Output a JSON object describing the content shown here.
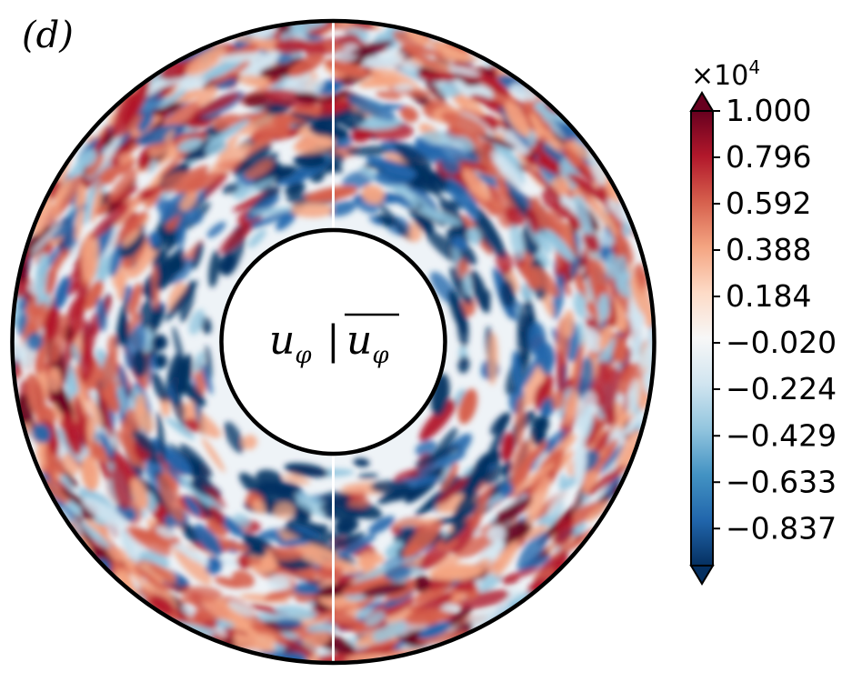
{
  "chart_data": {
    "type": "heatmap",
    "panel_label": "(d)",
    "center_label": {
      "left_symbol": "u",
      "left_subscript": "φ",
      "separator": "|",
      "right_symbol": "u",
      "right_subscript": "φ",
      "right_overline": true
    },
    "geometry": "annulus (meridional/equatorial slice); left half: instantaneous field, right half: time-averaged field",
    "colormap": "RdBu_r",
    "colorbar": {
      "multiplier": "×10",
      "multiplier_exponent": "4",
      "extend": "both",
      "range": [
        -1.0,
        1.0
      ],
      "ticks": [
        "1.000",
        "0.796",
        "0.592",
        "0.388",
        "0.184",
        "−0.020",
        "−0.224",
        "−0.429",
        "−0.633",
        "−0.837"
      ],
      "tick_values": [
        1.0,
        0.796,
        0.592,
        0.388,
        0.184,
        -0.02,
        -0.224,
        -0.429,
        -0.633,
        -0.837
      ]
    },
    "colors": {
      "neg_extreme": "#053061",
      "neg_strong": "#2166ac",
      "neg_mid": "#4393c3",
      "neg_light": "#92c5de",
      "neg_pale": "#d1e5f0",
      "neutral": "#f7f7f7",
      "pos_pale": "#fddbc7",
      "pos_light": "#f4a582",
      "pos_mid": "#d6604d",
      "pos_strong": "#b2182b",
      "pos_extreme": "#67001f"
    }
  }
}
